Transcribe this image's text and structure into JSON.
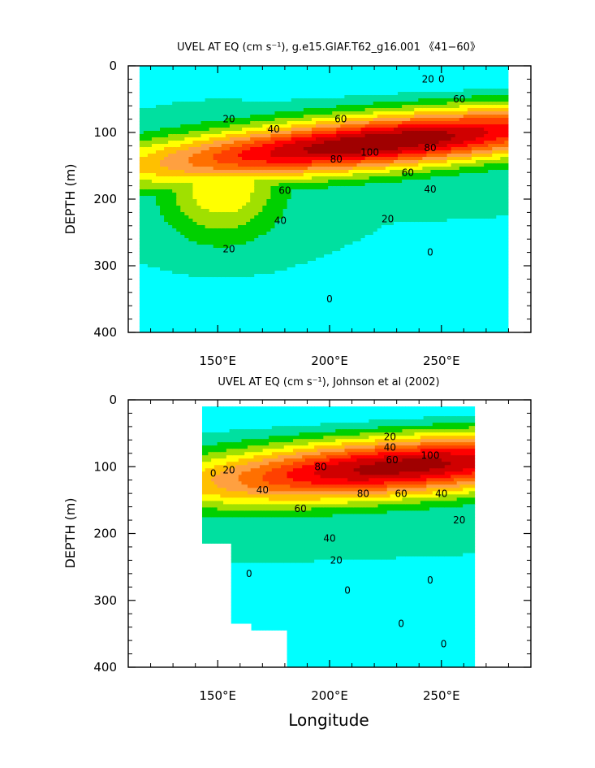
{
  "chart_data": [
    {
      "type": "heatmap",
      "title": "UVEL AT EQ (cm s⁻¹), g.e15.GIAF.T62_g16.001 《41−60》",
      "xlabel": "",
      "ylabel": "DEPTH (m)",
      "xlim": [
        110,
        290
      ],
      "ylim": [
        400,
        0
      ],
      "x_ticks": [
        "150°E",
        "200°E",
        "250°E"
      ],
      "x_tick_values": [
        150,
        200,
        250
      ],
      "y_ticks": [
        "0",
        "100",
        "200",
        "300",
        "400"
      ],
      "y_tick_values": [
        0,
        100,
        200,
        300,
        400
      ],
      "data_extent_x": [
        115,
        280
      ],
      "contour_levels": [
        -20,
        0,
        10,
        20,
        30,
        40,
        50,
        60,
        70,
        80,
        90,
        100
      ],
      "fill_colors": [
        "#00ffff",
        "#00e0a0",
        "#00d000",
        "#a0e000",
        "#ffff00",
        "#ffc000",
        "#ffa040",
        "#ff7000",
        "#ff4000",
        "#ff0000",
        "#d00000",
        "#a00000"
      ],
      "core": {
        "lon": 222,
        "depth": 115,
        "max_speed": 110
      },
      "contour_labels": [
        {
          "text": "0",
          "lon": 200,
          "depth": 355
        },
        {
          "text": "20",
          "lon": 155,
          "depth": 280
        },
        {
          "text": "40",
          "lon": 178,
          "depth": 237
        },
        {
          "text": "60",
          "lon": 180,
          "depth": 192
        },
        {
          "text": "80",
          "lon": 203,
          "depth": 145
        },
        {
          "text": "100",
          "lon": 218,
          "depth": 135
        },
        {
          "text": "60",
          "lon": 205,
          "depth": 85
        },
        {
          "text": "40",
          "lon": 175,
          "depth": 100
        },
        {
          "text": "20",
          "lon": 155,
          "depth": 85
        },
        {
          "text": "80",
          "lon": 245,
          "depth": 128
        },
        {
          "text": "60",
          "lon": 235,
          "depth": 165
        },
        {
          "text": "40",
          "lon": 245,
          "depth": 190
        },
        {
          "text": "20",
          "lon": 226,
          "depth": 235
        },
        {
          "text": "0",
          "lon": 245,
          "depth": 285
        },
        {
          "text": "20",
          "lon": 244,
          "depth": 25
        },
        {
          "text": "60",
          "lon": 258,
          "depth": 55
        },
        {
          "text": "0",
          "lon": 250,
          "depth": 25
        }
      ]
    },
    {
      "type": "heatmap",
      "title": "UVEL AT EQ (cm s⁻¹), Johnson et al (2002)",
      "xlabel": "Longitude",
      "ylabel": "DEPTH (m)",
      "xlim": [
        110,
        290
      ],
      "ylim": [
        400,
        0
      ],
      "x_ticks": [
        "150°E",
        "200°E",
        "250°E"
      ],
      "x_tick_values": [
        150,
        200,
        250
      ],
      "y_ticks": [
        "0",
        "100",
        "200",
        "300",
        "400"
      ],
      "y_tick_values": [
        0,
        100,
        200,
        300,
        400
      ],
      "data_extent_x": [
        143,
        265
      ],
      "data_mask_bottom_left": [
        {
          "lon": 143,
          "depth": 215
        },
        {
          "lon": 156,
          "depth": 215
        },
        {
          "lon": 156,
          "depth": 335
        },
        {
          "lon": 165,
          "depth": 335
        },
        {
          "lon": 165,
          "depth": 345
        },
        {
          "lon": 181,
          "depth": 345
        },
        {
          "lon": 181,
          "depth": 400
        }
      ],
      "contour_levels": [
        -20,
        0,
        10,
        20,
        30,
        40,
        50,
        60,
        70,
        80,
        90,
        100
      ],
      "fill_colors": [
        "#00ffff",
        "#00e0a0",
        "#00d000",
        "#a0e000",
        "#ffff00",
        "#ffc000",
        "#ffa040",
        "#ff7000",
        "#ff4000",
        "#ff0000",
        "#d00000",
        "#a00000"
      ],
      "core": {
        "lon": 232,
        "depth": 100,
        "max_speed": 105
      },
      "contour_labels": [
        {
          "text": "0",
          "lon": 148,
          "depth": 115
        },
        {
          "text": "20",
          "lon": 155,
          "depth": 110
        },
        {
          "text": "40",
          "lon": 170,
          "depth": 140
        },
        {
          "text": "60",
          "lon": 187,
          "depth": 168
        },
        {
          "text": "80",
          "lon": 196,
          "depth": 105
        },
        {
          "text": "80",
          "lon": 215,
          "depth": 145
        },
        {
          "text": "60",
          "lon": 232,
          "depth": 145
        },
        {
          "text": "40",
          "lon": 250,
          "depth": 145
        },
        {
          "text": "20",
          "lon": 258,
          "depth": 185
        },
        {
          "text": "40",
          "lon": 200,
          "depth": 212
        },
        {
          "text": "20",
          "lon": 203,
          "depth": 245
        },
        {
          "text": "0",
          "lon": 208,
          "depth": 290
        },
        {
          "text": "0",
          "lon": 164,
          "depth": 265
        },
        {
          "text": "20",
          "lon": 227,
          "depth": 60
        },
        {
          "text": "40",
          "lon": 227,
          "depth": 76
        },
        {
          "text": "60",
          "lon": 228,
          "depth": 95
        },
        {
          "text": "100",
          "lon": 245,
          "depth": 88
        },
        {
          "text": "0",
          "lon": 232,
          "depth": 340
        },
        {
          "text": "0",
          "lon": 251,
          "depth": 370
        },
        {
          "text": "0",
          "lon": 245,
          "depth": 275
        }
      ]
    }
  ]
}
